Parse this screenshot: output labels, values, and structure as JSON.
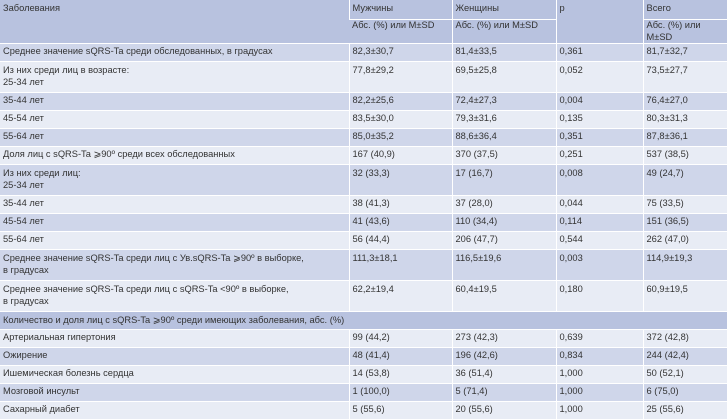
{
  "header": {
    "disease": "Заболевания",
    "men": "Мужчины",
    "women": "Женщины",
    "p": "p",
    "total": "Всего",
    "sub_men": "Абс. (%) или M±SD",
    "sub_women": "Абс. (%) или M±SD",
    "sub_total": "Абс. (%) или M±SD"
  },
  "rows": [
    {
      "label": "Среднее значение sQRS-Ta среди обследованных, в градусах",
      "label2": "",
      "men": "82,3±30,7",
      "women": "81,4±33,5",
      "p": "0,361",
      "total": "81,7±32,7"
    },
    {
      "label": "Из них среди лиц в возрасте:",
      "label2": "25-34 лет",
      "men": "77,8±29,2",
      "women": "69,5±25,8",
      "p": "0,052",
      "total": "73,5±27,7"
    },
    {
      "label": "35-44 лет",
      "label2": "",
      "men": "82,2±25,6",
      "women": "72,4±27,3",
      "p": "0,004",
      "total": "76,4±27,0"
    },
    {
      "label": "45-54 лет",
      "label2": "",
      "men": "83,5±30,0",
      "women": "79,3±31,6",
      "p": "0,135",
      "total": "80,3±31,3"
    },
    {
      "label": "55-64 лет",
      "label2": "",
      "men": "85,0±35,2",
      "women": "88,6±36,4",
      "p": "0,351",
      "total": "87,8±36,1"
    },
    {
      "label": "Доля лиц с sQRS-Ta ⩾90º среди всех обследованных",
      "label2": "",
      "men": "167 (40,9)",
      "women": "370 (37,5)",
      "p": "0,251",
      "total": "537 (38,5)"
    },
    {
      "label": "Из них среди лиц:",
      "label2": "25-34 лет",
      "men": "32 (33,3)",
      "women": "17 (16,7)",
      "p": "0,008",
      "total": "49 (24,7)"
    },
    {
      "label": "35-44 лет",
      "label2": "",
      "men": "38 (41,3)",
      "women": "37 (28,0)",
      "p": "0,044",
      "total": "75 (33,5)"
    },
    {
      "label": "45-54 лет",
      "label2": "",
      "men": "41 (43,6)",
      "women": "110 (34,4)",
      "p": "0,114",
      "total": "151 (36,5)"
    },
    {
      "label": "55-64 лет",
      "label2": "",
      "men": "56 (44,4)",
      "women": "206 (47,7)",
      "p": "0,544",
      "total": "262 (47,0)"
    },
    {
      "label": "Среднее значение sQRS-Ta среди лиц с Ув.sQRS-Ta ⩾90º в выборке,",
      "label2": "в градусах",
      "men": "111,3±18,1",
      "women": "116,5±19,6",
      "p": "0,003",
      "total": "114,9±19,3"
    },
    {
      "label": "Среднее значение sQRS-Ta среди лиц с sQRS-Ta <90º в выборке,",
      "label2": "в градусах",
      "men": "62,2±19,4",
      "women": "60,4±19,5",
      "p": "0,180",
      "total": "60,9±19,5"
    }
  ],
  "section_title": "Количество и доля лиц с sQRS-Ta ⩾90º среди имеющих заболевания, абс. (%)",
  "disease_rows": [
    {
      "label": "Артериальная гипертония",
      "men": "99 (44,2)",
      "women": "273 (42,3)",
      "p": "0,639",
      "total": "372 (42,8)"
    },
    {
      "label": "Ожирение",
      "men": "48 (41,4)",
      "women": "196 (42,6)",
      "p": "0,834",
      "total": "244 (42,4)"
    },
    {
      "label": "Ишемическая болезнь сердца",
      "men": "14 (53,8)",
      "women": "36 (51,4)",
      "p": "1,000",
      "total": "50 (52,1)"
    },
    {
      "label": "Мозговой инсульт",
      "men": "1 (100,0)",
      "women": "5 (71,4)",
      "p": "1,000",
      "total": "6 (75,0)"
    },
    {
      "label": "Сахарный диабет",
      "men": "5 (55,6)",
      "women": "20 (55,6)",
      "p": "1,000",
      "total": "25 (55,6)"
    }
  ]
}
